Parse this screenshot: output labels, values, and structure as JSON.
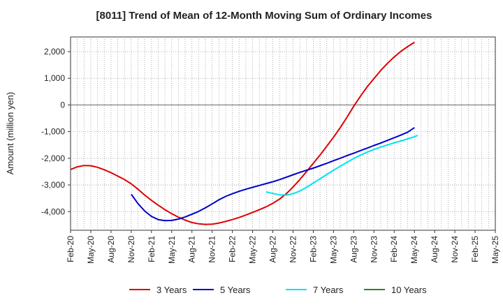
{
  "chart_data": {
    "type": "line",
    "title": "[8011]  Trend of Mean of 12-Month Moving Sum of Ordinary Incomes",
    "xlabel": "",
    "ylabel": "Amount (million yen)",
    "ylim": [
      -4700,
      2550
    ],
    "yticks": [
      2000,
      1000,
      0,
      -1000,
      -2000,
      -3000,
      -4000
    ],
    "ytick_labels": [
      "2,000",
      "1,000",
      "0",
      "-1,000",
      "-2,000",
      "-3,000",
      "-4,000"
    ],
    "x_tick_labels": [
      "Feb-20",
      "May-20",
      "Aug-20",
      "Nov-20",
      "Feb-21",
      "May-21",
      "Aug-21",
      "Nov-21",
      "Feb-22",
      "May-22",
      "Aug-22",
      "Nov-22",
      "Feb-23",
      "May-23",
      "Aug-23",
      "Nov-23",
      "Feb-24",
      "May-24",
      "Aug-24",
      "Nov-24",
      "Feb-25",
      "May-25"
    ],
    "x_range_months": [
      0,
      63
    ],
    "grid": true,
    "legend_position": "bottom",
    "series": [
      {
        "name": "3 Years",
        "color": "#dd0000",
        "points": [
          [
            0,
            -2420
          ],
          [
            1,
            -2320
          ],
          [
            2,
            -2270
          ],
          [
            3,
            -2280
          ],
          [
            4,
            -2340
          ],
          [
            5,
            -2430
          ],
          [
            6,
            -2540
          ],
          [
            7,
            -2670
          ],
          [
            8,
            -2800
          ],
          [
            9,
            -2960
          ],
          [
            10,
            -3160
          ],
          [
            11,
            -3380
          ],
          [
            12,
            -3580
          ],
          [
            13,
            -3760
          ],
          [
            14,
            -3930
          ],
          [
            15,
            -4080
          ],
          [
            16,
            -4210
          ],
          [
            17,
            -4320
          ],
          [
            18,
            -4410
          ],
          [
            19,
            -4460
          ],
          [
            20,
            -4480
          ],
          [
            21,
            -4470
          ],
          [
            22,
            -4430
          ],
          [
            23,
            -4370
          ],
          [
            24,
            -4300
          ],
          [
            25,
            -4220
          ],
          [
            26,
            -4130
          ],
          [
            27,
            -4030
          ],
          [
            28,
            -3930
          ],
          [
            29,
            -3820
          ],
          [
            30,
            -3690
          ],
          [
            31,
            -3530
          ],
          [
            32,
            -3330
          ],
          [
            33,
            -3080
          ],
          [
            34,
            -2800
          ],
          [
            35,
            -2500
          ],
          [
            36,
            -2190
          ],
          [
            37,
            -1880
          ],
          [
            38,
            -1550
          ],
          [
            39,
            -1210
          ],
          [
            40,
            -850
          ],
          [
            41,
            -460
          ],
          [
            42,
            -50
          ],
          [
            43,
            330
          ],
          [
            44,
            680
          ],
          [
            45,
            990
          ],
          [
            46,
            1290
          ],
          [
            47,
            1560
          ],
          [
            48,
            1800
          ],
          [
            49,
            2010
          ],
          [
            50,
            2190
          ],
          [
            51,
            2350
          ]
        ]
      },
      {
        "name": "5 Years",
        "color": "#0000cc",
        "points": [
          [
            9,
            -3350
          ],
          [
            10,
            -3700
          ],
          [
            11,
            -3980
          ],
          [
            12,
            -4180
          ],
          [
            13,
            -4300
          ],
          [
            14,
            -4340
          ],
          [
            15,
            -4330
          ],
          [
            16,
            -4280
          ],
          [
            17,
            -4200
          ],
          [
            18,
            -4100
          ],
          [
            19,
            -3990
          ],
          [
            20,
            -3860
          ],
          [
            21,
            -3710
          ],
          [
            22,
            -3560
          ],
          [
            23,
            -3430
          ],
          [
            24,
            -3330
          ],
          [
            25,
            -3240
          ],
          [
            26,
            -3160
          ],
          [
            27,
            -3090
          ],
          [
            28,
            -3020
          ],
          [
            29,
            -2950
          ],
          [
            30,
            -2880
          ],
          [
            31,
            -2800
          ],
          [
            32,
            -2710
          ],
          [
            33,
            -2620
          ],
          [
            34,
            -2530
          ],
          [
            35,
            -2450
          ],
          [
            36,
            -2370
          ],
          [
            37,
            -2280
          ],
          [
            38,
            -2190
          ],
          [
            39,
            -2090
          ],
          [
            40,
            -2000
          ],
          [
            41,
            -1900
          ],
          [
            42,
            -1810
          ],
          [
            43,
            -1710
          ],
          [
            44,
            -1620
          ],
          [
            45,
            -1520
          ],
          [
            46,
            -1430
          ],
          [
            47,
            -1330
          ],
          [
            48,
            -1230
          ],
          [
            49,
            -1130
          ],
          [
            50,
            -1020
          ],
          [
            51,
            -850
          ]
        ]
      },
      {
        "name": "7 Years",
        "color": "#00e5ee",
        "points": [
          [
            29,
            -3260
          ],
          [
            30,
            -3320
          ],
          [
            31,
            -3370
          ],
          [
            32,
            -3380
          ],
          [
            33,
            -3330
          ],
          [
            34,
            -3230
          ],
          [
            35,
            -3090
          ],
          [
            36,
            -2930
          ],
          [
            37,
            -2770
          ],
          [
            38,
            -2610
          ],
          [
            39,
            -2450
          ],
          [
            40,
            -2300
          ],
          [
            41,
            -2150
          ],
          [
            42,
            -2010
          ],
          [
            43,
            -1880
          ],
          [
            44,
            -1770
          ],
          [
            45,
            -1670
          ],
          [
            46,
            -1580
          ],
          [
            47,
            -1500
          ],
          [
            48,
            -1420
          ],
          [
            49,
            -1350
          ],
          [
            50,
            -1270
          ],
          [
            51,
            -1190
          ],
          [
            51.5,
            -1140
          ]
        ]
      },
      {
        "name": "10 Years",
        "color": "#228b22",
        "points": []
      }
    ]
  }
}
